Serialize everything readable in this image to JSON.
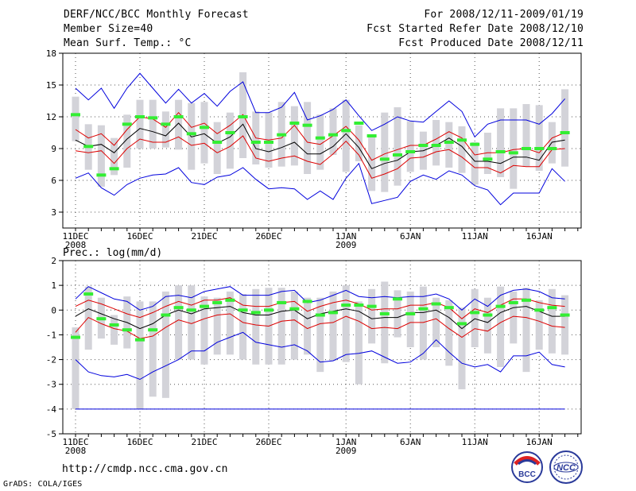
{
  "header": {
    "title": "DERF/NCC/BCC Monthly Forecast",
    "member_size": "Member Size=40",
    "variable": "Mean Surf. Temp.: °C",
    "forecast_period": "For 2008/12/11-2009/01/19",
    "start_date": "Fcst Started Refer Date 2008/12/10",
    "produced_date": "Fcst Produced Date 2008/12/11"
  },
  "footer": {
    "url": "http://cmdp.ncc.cma.gov.cn",
    "grads": "GrADS: COLA/IGES",
    "logo_bcc": "BCC",
    "logo_ncc": "NCC"
  },
  "colors": {
    "box": "#d3d3d9",
    "max": "#0000dd",
    "min": "#0000dd",
    "quartile": "#dd0000",
    "mean": "#000000",
    "obs": "#33ee33",
    "grid": "#555555"
  },
  "chart_data": [
    {
      "type": "ensemble-boxplot",
      "title": "Mean Surf. Temp.: °C",
      "ylabel": "°C",
      "ylim": [
        1.5,
        18
      ],
      "yticks": [
        3,
        6,
        9,
        12,
        15,
        18
      ],
      "x_tick_labels": [
        {
          "day": 1,
          "label": "11DEC",
          "sub": "2008"
        },
        {
          "day": 6,
          "label": "16DEC",
          "sub": ""
        },
        {
          "day": 11,
          "label": "21DEC",
          "sub": ""
        },
        {
          "day": 16,
          "label": "26DEC",
          "sub": ""
        },
        {
          "day": 22,
          "label": "1JAN",
          "sub": "2009"
        },
        {
          "day": 27,
          "label": "6JAN",
          "sub": ""
        },
        {
          "day": 32,
          "label": "11JAN",
          "sub": ""
        },
        {
          "day": 37,
          "label": "16JAN",
          "sub": ""
        }
      ],
      "grid": true,
      "series": {
        "max": [
          14.7,
          13.6,
          14.7,
          12.8,
          14.7,
          16.1,
          14.7,
          13.3,
          14.6,
          13.3,
          14.2,
          13.0,
          14.4,
          15.3,
          12.4,
          12.4,
          12.9,
          14.3,
          11.7,
          12.1,
          12.7,
          13.6,
          12.1,
          10.7,
          11.3,
          12.0,
          11.6,
          11.5,
          12.5,
          13.5,
          12.5,
          10.1,
          11.3,
          11.7,
          11.7,
          11.7,
          11.3,
          12.3,
          13.7
        ],
        "q_hi": [
          10.8,
          10.0,
          10.4,
          9.3,
          10.8,
          12.0,
          11.8,
          11.0,
          12.4,
          11.0,
          11.4,
          10.4,
          11.2,
          12.2,
          10.0,
          9.8,
          10.0,
          11.2,
          9.6,
          9.4,
          10.2,
          11.1,
          9.8,
          7.9,
          8.5,
          8.9,
          9.3,
          9.3,
          9.9,
          10.6,
          10.0,
          8.4,
          8.6,
          8.6,
          8.9,
          9.0,
          8.6,
          10.0,
          10.5
        ],
        "mean": [
          9.8,
          9.2,
          9.4,
          8.6,
          9.9,
          10.9,
          10.6,
          10.2,
          11.4,
          10.1,
          10.4,
          9.5,
          10.1,
          11.3,
          9.0,
          8.7,
          9.1,
          9.6,
          8.5,
          8.5,
          9.2,
          10.4,
          9.1,
          7.1,
          7.6,
          7.9,
          8.7,
          8.8,
          9.3,
          10.0,
          9.2,
          7.8,
          7.8,
          7.6,
          8.2,
          8.2,
          7.9,
          9.6,
          9.8
        ],
        "q_lo": [
          8.8,
          8.6,
          8.8,
          7.6,
          9.0,
          9.9,
          9.6,
          9.6,
          10.1,
          9.3,
          9.5,
          8.6,
          9.2,
          10.2,
          8.1,
          7.8,
          8.1,
          8.3,
          7.8,
          7.5,
          8.5,
          9.7,
          8.4,
          6.2,
          6.6,
          7.1,
          8.1,
          8.2,
          8.7,
          8.9,
          8.2,
          7.2,
          7.2,
          6.7,
          7.4,
          7.3,
          7.3,
          8.9,
          9.0
        ],
        "min": [
          6.2,
          6.7,
          5.3,
          4.6,
          5.6,
          6.2,
          6.5,
          6.6,
          7.2,
          5.8,
          5.6,
          6.3,
          6.5,
          7.2,
          6.1,
          5.2,
          5.3,
          5.2,
          4.2,
          5.0,
          4.2,
          6.2,
          7.6,
          3.8,
          4.1,
          4.4,
          5.9,
          6.5,
          6.1,
          6.9,
          6.5,
          5.5,
          5.1,
          3.7,
          4.8,
          4.8,
          4.8,
          7.1,
          5.9
        ],
        "box_hi": [
          13.9,
          11.3,
          11.2,
          10.0,
          12.2,
          13.6,
          13.6,
          12.5,
          13.6,
          13.3,
          13.4,
          11.5,
          12.4,
          16.2,
          12.5,
          12.4,
          13.4,
          13.0,
          13.4,
          12.2,
          12.8,
          13.6,
          11.2,
          10.3,
          12.4,
          12.9,
          11.6,
          10.6,
          11.7,
          11.5,
          11.1,
          9.6,
          10.5,
          12.8,
          12.8,
          13.2,
          13.1,
          11.5,
          14.6
        ],
        "box_lo": [
          9.7,
          7.0,
          5.4,
          6.5,
          7.2,
          9.0,
          9.0,
          9.1,
          8.9,
          7.0,
          7.6,
          6.6,
          7.1,
          8.1,
          7.5,
          7.2,
          7.3,
          7.4,
          6.6,
          7.0,
          8.4,
          6.8,
          7.8,
          5.0,
          4.9,
          5.5,
          6.8,
          7.0,
          7.4,
          7.2,
          6.7,
          5.6,
          6.6,
          6.3,
          5.2,
          7.3,
          6.9,
          7.6,
          7.3
        ],
        "obs": [
          12.2,
          9.2,
          6.5,
          7.1,
          11.3,
          12.0,
          11.9,
          11.3,
          12.0,
          10.4,
          11.0,
          9.6,
          10.5,
          12.0,
          9.6,
          9.6,
          10.3,
          11.4,
          11.2,
          10.0,
          10.3,
          10.7,
          11.4,
          10.2,
          8.0,
          8.4,
          8.7,
          9.3,
          9.3,
          9.6,
          9.8,
          9.4,
          8.0,
          8.7,
          8.6,
          9.0,
          9.0,
          9.0,
          10.5
        ]
      }
    },
    {
      "type": "ensemble-boxplot",
      "title": "Prec.: log(mm/d)",
      "ylabel": "log(mm/d)",
      "ylim": [
        -5,
        2
      ],
      "yticks": [
        -5,
        -4,
        -3,
        -2,
        -1,
        0,
        1,
        2
      ],
      "x_tick_labels": [
        {
          "day": 1,
          "label": "11DEC",
          "sub": "2008"
        },
        {
          "day": 6,
          "label": "16DEC",
          "sub": ""
        },
        {
          "day": 11,
          "label": "21DEC",
          "sub": ""
        },
        {
          "day": 16,
          "label": "26DEC",
          "sub": ""
        },
        {
          "day": 22,
          "label": "1JAN",
          "sub": "2009"
        },
        {
          "day": 27,
          "label": "6JAN",
          "sub": ""
        },
        {
          "day": 32,
          "label": "11JAN",
          "sub": ""
        },
        {
          "day": 37,
          "label": "16JAN",
          "sub": ""
        }
      ],
      "grid": true,
      "series": {
        "max": [
          0.45,
          0.95,
          0.7,
          0.45,
          0.35,
          0.0,
          0.15,
          0.55,
          0.6,
          0.5,
          0.75,
          0.85,
          0.95,
          0.6,
          0.6,
          0.6,
          0.75,
          0.8,
          0.3,
          0.4,
          0.6,
          0.8,
          0.55,
          0.5,
          0.55,
          0.5,
          0.55,
          0.55,
          0.65,
          0.45,
          0.0,
          0.45,
          0.15,
          0.6,
          0.8,
          0.85,
          0.75,
          0.5,
          0.45
        ],
        "q_hi": [
          0.15,
          0.4,
          0.25,
          0.05,
          -0.15,
          -0.3,
          -0.1,
          0.15,
          0.35,
          0.2,
          0.4,
          0.4,
          0.5,
          0.2,
          0.15,
          0.15,
          0.3,
          0.35,
          -0.05,
          0.15,
          0.3,
          0.4,
          0.25,
          0.0,
          0.05,
          0.05,
          0.2,
          0.2,
          0.3,
          0.1,
          -0.35,
          0.05,
          -0.1,
          0.2,
          0.45,
          0.45,
          0.3,
          0.2,
          0.15
        ],
        "mean": [
          -0.25,
          0.05,
          -0.15,
          -0.35,
          -0.5,
          -0.75,
          -0.55,
          -0.2,
          0.0,
          -0.15,
          0.05,
          0.1,
          0.15,
          -0.1,
          -0.2,
          -0.2,
          -0.05,
          0.0,
          -0.35,
          -0.15,
          -0.05,
          0.05,
          -0.05,
          -0.35,
          -0.3,
          -0.3,
          -0.1,
          -0.1,
          0.0,
          -0.3,
          -0.75,
          -0.35,
          -0.5,
          -0.1,
          0.1,
          0.15,
          -0.05,
          -0.25,
          -0.25
        ],
        "q_lo": [
          -0.9,
          -0.3,
          -0.55,
          -0.75,
          -0.85,
          -1.15,
          -1.05,
          -0.7,
          -0.4,
          -0.55,
          -0.35,
          -0.2,
          -0.15,
          -0.5,
          -0.6,
          -0.65,
          -0.45,
          -0.4,
          -0.75,
          -0.55,
          -0.5,
          -0.25,
          -0.45,
          -0.75,
          -0.7,
          -0.75,
          -0.5,
          -0.5,
          -0.35,
          -0.75,
          -1.1,
          -0.75,
          -0.85,
          -0.5,
          -0.25,
          -0.3,
          -0.45,
          -0.65,
          -0.7
        ],
        "min": [
          -2.0,
          -2.5,
          -2.65,
          -2.7,
          -2.6,
          -2.8,
          -2.5,
          -2.25,
          -2.0,
          -1.65,
          -1.65,
          -1.3,
          -1.1,
          -0.9,
          -1.3,
          -1.4,
          -1.5,
          -1.4,
          -1.65,
          -2.1,
          -2.05,
          -1.8,
          -1.75,
          -1.65,
          -1.9,
          -2.15,
          -2.1,
          -1.75,
          -1.2,
          -1.7,
          -2.15,
          -2.3,
          -2.2,
          -2.5,
          -1.85,
          -1.85,
          -1.7,
          -2.2,
          -2.3
        ],
        "box_hi": [
          -0.7,
          0.95,
          0.5,
          -0.2,
          0.55,
          0.35,
          0.35,
          0.75,
          1.0,
          1.0,
          0.55,
          0.5,
          0.75,
          0.65,
          0.85,
          0.9,
          0.9,
          0.75,
          0.5,
          0.5,
          0.75,
          1.0,
          0.35,
          0.85,
          1.15,
          0.8,
          0.75,
          0.95,
          0.5,
          0.4,
          0.1,
          0.85,
          0.5,
          0.95,
          0.75,
          0.9,
          0.4,
          0.85,
          0.6
        ],
        "box_lo": [
          -4.0,
          -1.6,
          -1.15,
          -1.4,
          -1.55,
          -4.0,
          -3.5,
          -3.55,
          -2.0,
          -2.0,
          -2.2,
          -1.8,
          -1.8,
          -2.0,
          -2.2,
          -2.2,
          -2.2,
          -2.0,
          -1.8,
          -2.5,
          -2.05,
          -2.1,
          -3.0,
          -1.35,
          -2.15,
          -1.1,
          -1.5,
          -2.0,
          -1.5,
          -2.25,
          -3.2,
          -1.5,
          -1.75,
          -2.3,
          -1.35,
          -2.5,
          -1.6,
          -1.75,
          -1.8
        ],
        "obs": [
          -1.1,
          0.65,
          -0.35,
          -0.6,
          -0.8,
          -1.2,
          -0.8,
          -0.2,
          0.1,
          0.0,
          0.15,
          0.3,
          0.4,
          0.0,
          -0.1,
          0.0,
          0.3,
          0.05,
          0.35,
          -0.2,
          -0.1,
          0.2,
          0.2,
          0.15,
          -0.15,
          0.45,
          -0.15,
          0.05,
          0.25,
          0.1,
          -0.55,
          -0.1,
          -0.2,
          0.15,
          0.3,
          0.4,
          0.0,
          0.1,
          -0.2
        ]
      }
    }
  ]
}
